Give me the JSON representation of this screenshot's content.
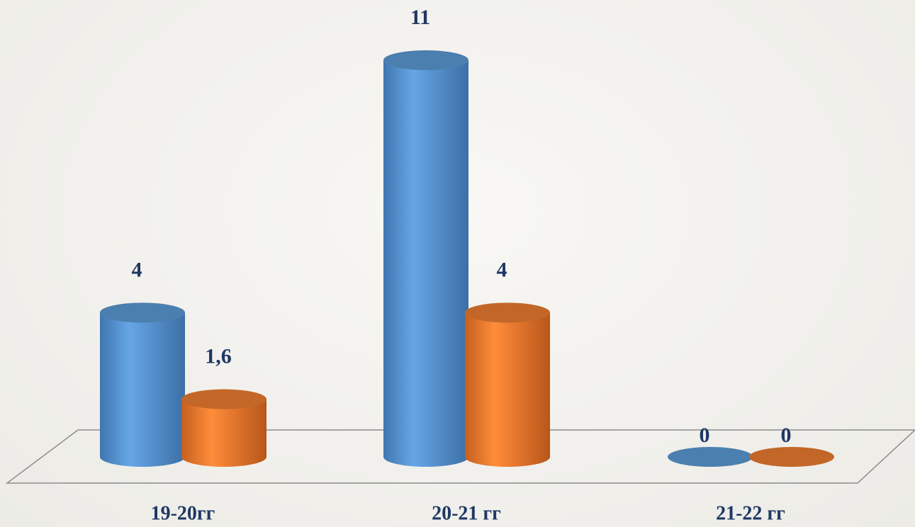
{
  "chart_data": {
    "type": "bar3d",
    "categories": [
      "19-20гг",
      "20-21 гг",
      "21-22 гг"
    ],
    "series": [
      {
        "color": "#5b9bd5",
        "values": [
          4,
          11,
          0
        ]
      },
      {
        "color": "#ed7d31",
        "values": [
          1.6,
          4,
          0
        ],
        "value_labels": [
          "1,6",
          "4",
          "0"
        ]
      }
    ]
  }
}
